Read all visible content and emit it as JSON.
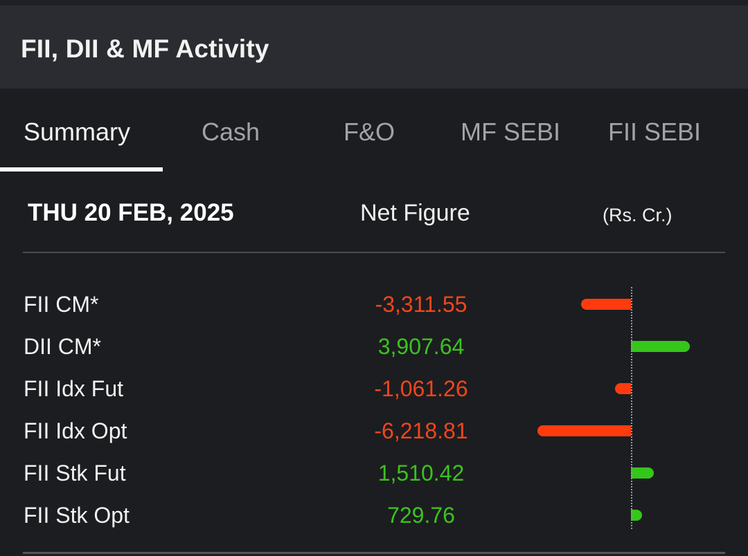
{
  "header": {
    "title": "FII, DII & MF Activity"
  },
  "tabs": [
    {
      "label": "Summary",
      "active": true
    },
    {
      "label": "Cash",
      "active": false
    },
    {
      "label": "F&O",
      "active": false
    },
    {
      "label": "MF SEBI",
      "active": false
    },
    {
      "label": "FII SEBI",
      "active": false
    }
  ],
  "info": {
    "date": "THU 20 FEB, 2025",
    "net_label": "Net Figure",
    "unit": "(Rs. Cr.)"
  },
  "colors": {
    "negative": "#ff3b0e",
    "positive": "#35c61a",
    "negative_text": "#f2451d",
    "positive_text": "#3cc21f"
  },
  "rows": [
    {
      "label": "FII CM*",
      "value_text": "-3,311.55",
      "value": -3311.55
    },
    {
      "label": "DII CM*",
      "value_text": "3,907.64",
      "value": 3907.64
    },
    {
      "label": "FII Idx Fut",
      "value_text": "-1,061.26",
      "value": -1061.26
    },
    {
      "label": "FII Idx Opt",
      "value_text": "-6,218.81",
      "value": -6218.81
    },
    {
      "label": "FII Stk Fut",
      "value_text": "1,510.42",
      "value": 1510.42
    },
    {
      "label": "FII Stk Opt",
      "value_text": "729.76",
      "value": 729.76
    }
  ]
}
